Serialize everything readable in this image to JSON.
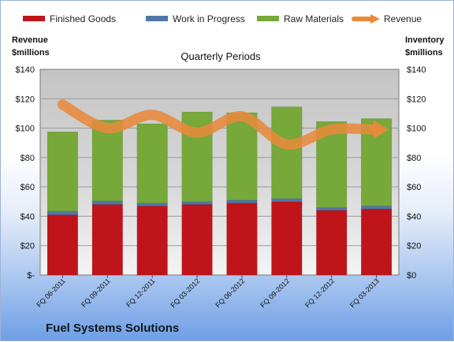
{
  "chart_data": {
    "type": "bar",
    "subtitle": "Quarterly Periods",
    "company": "Fuel Systems Solutions",
    "y_left_title": [
      "Revenue",
      "$millions"
    ],
    "y_right_title": [
      "Inventory",
      "$millions"
    ],
    "ylim": [
      0,
      140
    ],
    "y_ticks": [
      0,
      20,
      40,
      60,
      80,
      100,
      120,
      140
    ],
    "y_left_tick_labels": [
      "$-",
      "$20",
      "$40",
      "$60",
      "$80",
      "$100",
      "$120",
      "$140"
    ],
    "y_right_tick_labels": [
      "$0",
      "$20",
      "$40",
      "$60",
      "$80",
      "$100",
      "$120",
      "$140"
    ],
    "categories": [
      "FQ 06-2011",
      "FQ 09-2011",
      "FQ 12-2011",
      "FQ 03-2012",
      "FQ 06-2012",
      "FQ 09-2012",
      "FQ 12-2012",
      "FQ 03-2013"
    ],
    "stacked_series": [
      {
        "name": "Finished Goods",
        "color": "#c0141b",
        "values": [
          41,
          48,
          47,
          48,
          49,
          50,
          44,
          45
        ]
      },
      {
        "name": "Work in Progress",
        "color": "#4f77a8",
        "values": [
          2.5,
          2.5,
          2,
          2,
          2,
          2,
          2,
          2
        ]
      },
      {
        "name": "Raw Materials",
        "color": "#76a83a",
        "values": [
          54,
          55,
          54,
          61,
          59.5,
          62.5,
          58.5,
          59.5
        ]
      }
    ],
    "line_series": {
      "name": "Revenue",
      "color": "#e88a3c",
      "values": [
        116,
        100,
        109,
        97,
        108,
        89,
        99,
        99
      ]
    },
    "grid": true,
    "legend": "top"
  }
}
